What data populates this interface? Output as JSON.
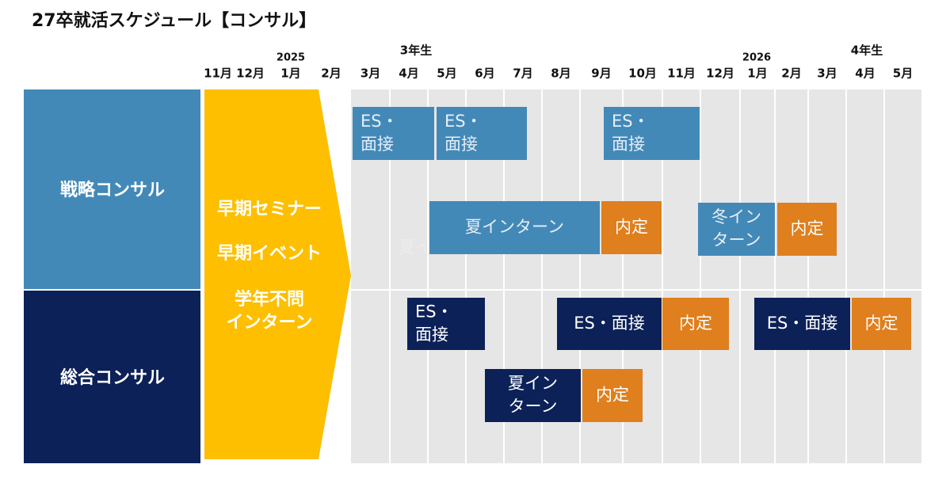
{
  "title": "27卒就活スケジュール【コンサル】",
  "year_labels": [
    "2025",
    "2026"
  ],
  "grade_labels": [
    "3年生",
    "4年生"
  ],
  "months": [
    "11月",
    "12月",
    "1月",
    "2月",
    "3月",
    "4月",
    "5月",
    "6月",
    "7月",
    "8月",
    "9月",
    "10月",
    "11月",
    "12月",
    "1月",
    "2月",
    "3月",
    "4月",
    "5月"
  ],
  "early": {
    "lines": [
      "早期セミナー",
      "早期イベント",
      "学年不問",
      "インターン"
    ]
  },
  "rows": [
    {
      "label": "戦略コンサル",
      "bars": [
        {
          "lines": [
            "ES・",
            "面接"
          ]
        },
        {
          "lines": [
            "ES・",
            "面接"
          ]
        },
        {
          "lines": [
            "ES・",
            "面接"
          ]
        },
        {
          "lines": [
            "夏インターン"
          ]
        },
        {
          "lines": [
            "内定"
          ]
        },
        {
          "lines": [
            "冬イン",
            "ターン"
          ]
        },
        {
          "lines": [
            "内定"
          ]
        }
      ],
      "ghost": "夏イ"
    },
    {
      "label": "総合コンサル",
      "bars": [
        {
          "lines": [
            "ES・",
            "面接"
          ]
        },
        {
          "lines": [
            "ES・面接"
          ]
        },
        {
          "lines": [
            "内定"
          ]
        },
        {
          "lines": [
            "ES・面接"
          ]
        },
        {
          "lines": [
            "内定"
          ]
        },
        {
          "lines": [
            "夏イン",
            "ターン"
          ]
        },
        {
          "lines": [
            "内定"
          ]
        }
      ]
    }
  ]
}
